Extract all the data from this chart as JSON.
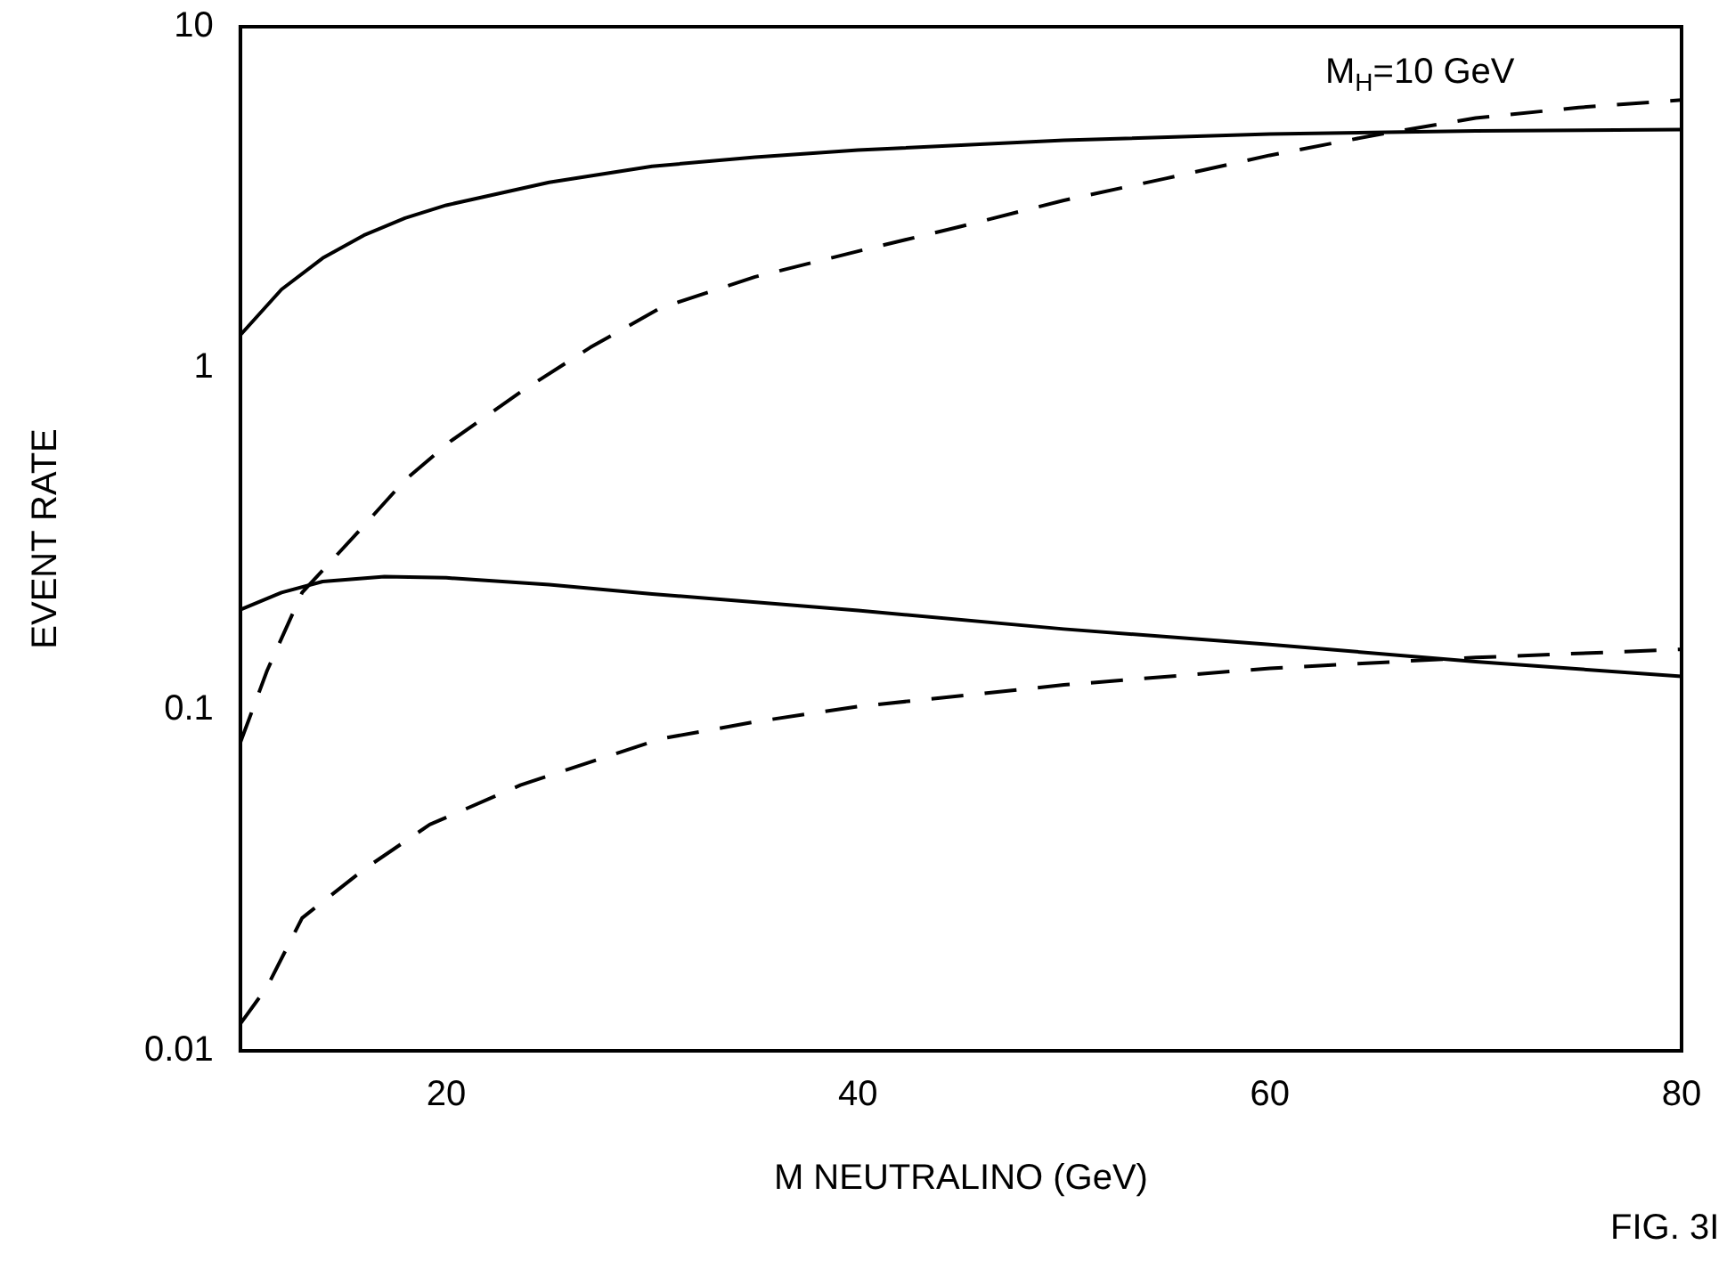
{
  "chart_data": {
    "type": "line",
    "xlabel": "M NEUTRALINO (GeV)",
    "ylabel": "EVENT RATE",
    "log": "y",
    "grid": false,
    "legend": false,
    "marker": "none",
    "xlim": [
      10,
      80
    ],
    "xticks": [
      20,
      40,
      60,
      80
    ],
    "ylim": [
      0.01,
      10
    ],
    "yticks": [
      0.01,
      0.1,
      1,
      10
    ],
    "annotations": [
      "M$_{H}$=10 GeV",
      "FIG. 3I"
    ],
    "series": [
      {
        "color": "#000000",
        "line_style": "solid",
        "x": [
          10,
          12,
          14,
          16,
          18,
          20,
          25,
          30,
          35,
          40,
          50,
          60,
          70,
          80
        ],
        "values": [
          1.25,
          1.7,
          2.1,
          2.45,
          2.75,
          3.0,
          3.5,
          3.9,
          4.15,
          4.35,
          4.65,
          4.85,
          4.95,
          5.0
        ]
      },
      {
        "color": "#000000",
        "line_style": "dashed",
        "x": [
          10,
          11.3,
          13,
          15.7,
          18,
          20.2,
          23.6,
          27,
          30.4,
          35,
          40,
          45,
          50,
          55,
          60,
          65,
          70,
          75,
          80
        ],
        "values": [
          0.08,
          0.13,
          0.22,
          0.33,
          0.47,
          0.61,
          0.85,
          1.15,
          1.5,
          1.85,
          2.2,
          2.6,
          3.1,
          3.6,
          4.2,
          4.8,
          5.4,
          5.8,
          6.1
        ]
      },
      {
        "color": "#000000",
        "line_style": "solid",
        "x": [
          10,
          12,
          14,
          17,
          20,
          25,
          30,
          40,
          50,
          60,
          70,
          80
        ],
        "values": [
          0.196,
          0.22,
          0.237,
          0.245,
          0.243,
          0.232,
          0.218,
          0.195,
          0.172,
          0.155,
          0.138,
          0.125
        ]
      },
      {
        "color": "#000000",
        "line_style": "dashed",
        "x": [
          10,
          11.3,
          13,
          16,
          19.2,
          23.6,
          30.4,
          35,
          40,
          50,
          60,
          70,
          80
        ],
        "values": [
          0.012,
          0.0154,
          0.0245,
          0.034,
          0.046,
          0.06,
          0.082,
          0.092,
          0.102,
          0.118,
          0.132,
          0.142,
          0.15
        ]
      }
    ]
  }
}
